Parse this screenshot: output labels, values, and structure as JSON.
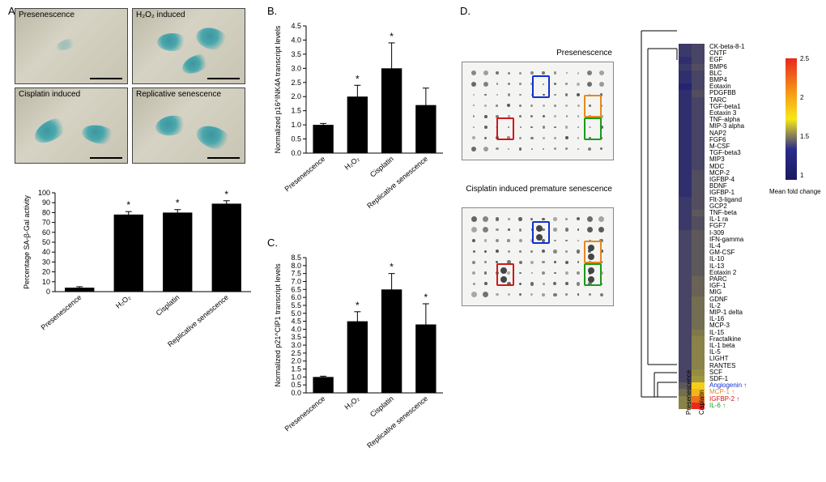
{
  "panelA": {
    "label": "A.",
    "micro_labels": [
      "Presenescence",
      "H₂O₂ induced",
      "Cisplatin induced",
      "Replicative senescence"
    ],
    "bars": {
      "ylabel": "Percentage SA-β-Gal activity",
      "ymax": 100,
      "ytick": 10,
      "categories": [
        "Presenescence",
        "H₂O₂",
        "Cisplatin",
        "Replicative senescence"
      ],
      "values": [
        4,
        78,
        80,
        89
      ],
      "errs": [
        1,
        3,
        3,
        3
      ],
      "stars": [
        false,
        true,
        true,
        true
      ]
    }
  },
  "panelB": {
    "label": "B.",
    "ylabel": "Normalized p16^INK4A transcript levels",
    "ymax": 4.5,
    "ytick": 0.5,
    "categories": [
      "Presenescence",
      "H₂O₂",
      "Cisplatin",
      "Replicative senescence"
    ],
    "values": [
      1.0,
      2.0,
      3.0,
      1.7
    ],
    "errs": [
      0.05,
      0.4,
      0.9,
      0.6
    ],
    "stars": [
      false,
      true,
      true,
      false
    ]
  },
  "panelC": {
    "label": "C.",
    "ylabel": "Normalized p21^CIP1 transcript levels",
    "ymax": 8.5,
    "ytick": 0.5,
    "categories": [
      "Presenescence",
      "H₂O₂",
      "Cisplatin",
      "Replicative senescence"
    ],
    "values": [
      1.0,
      4.5,
      6.5,
      4.3
    ],
    "errs": [
      0.05,
      0.6,
      1.0,
      1.3
    ],
    "stars": [
      false,
      true,
      true,
      true
    ]
  },
  "panelD": {
    "label": "D.",
    "blot_labels": [
      "Presenescence",
      "Cisplatin induced premature senescence"
    ],
    "boxes": [
      {
        "color": "#1030d0",
        "name": "angiogenin"
      },
      {
        "color": "#e58a1a",
        "name": "mcp1"
      },
      {
        "color": "#d01818",
        "name": "igfbp2"
      },
      {
        "color": "#1a9a1a",
        "name": "il6"
      }
    ],
    "heatmap": {
      "cols": [
        "Presenescence",
        "Cisplatin"
      ],
      "rows": [
        "CK-beta-8-1",
        "CNTF",
        "EGF",
        "BMP6",
        "BLC",
        "BMP4",
        "Eotaxin",
        "PDGFBB",
        "TARC",
        "TGF-beta1",
        "Eotaxin 3",
        "TNF-alpha",
        "MIP-3 alpha",
        "NAP2",
        "FGF6",
        "M-CSF",
        "TGF-beta3",
        "MIP3",
        "MDC",
        "MCP-2",
        "IGFBP-4",
        "BDNF",
        "IGFBP-1",
        "Flt-3-ligand",
        "GCP2",
        "TNF-beta",
        "IL-1 ra",
        "FGF7",
        "I-309",
        "IFN-gamma",
        "IL-4",
        "GM-CSF",
        "IL-10",
        "IL-13",
        "Eotaxin 2",
        "PARC",
        "IGF-1",
        "MIG",
        "GDNF",
        "IL-2",
        "MIP-1 delta",
        "IL-16",
        "MCP-3",
        "IL-15",
        "Fractalkine",
        "IL-1 beta",
        "IL-5",
        "LIGHT",
        "RANTES",
        "SCF",
        "SDF-1",
        "Angiogenin",
        "MCP-1",
        "IGFBP-2",
        "IL-6"
      ],
      "values": [
        [
          0.95,
          1.0
        ],
        [
          0.95,
          1.0
        ],
        [
          0.9,
          1.0
        ],
        [
          0.95,
          1.05
        ],
        [
          0.9,
          1.0
        ],
        [
          0.9,
          1.0
        ],
        [
          0.85,
          1.0
        ],
        [
          0.9,
          1.05
        ],
        [
          0.9,
          1.0
        ],
        [
          0.9,
          1.0
        ],
        [
          0.9,
          1.0
        ],
        [
          0.9,
          1.0
        ],
        [
          0.9,
          1.0
        ],
        [
          0.9,
          1.0
        ],
        [
          0.9,
          1.0
        ],
        [
          0.9,
          1.0
        ],
        [
          0.9,
          1.0
        ],
        [
          0.9,
          1.0
        ],
        [
          0.9,
          1.0
        ],
        [
          0.9,
          1.05
        ],
        [
          0.9,
          1.05
        ],
        [
          0.9,
          1.05
        ],
        [
          0.9,
          1.05
        ],
        [
          0.95,
          1.05
        ],
        [
          0.95,
          1.05
        ],
        [
          0.95,
          1.1
        ],
        [
          0.95,
          1.05
        ],
        [
          0.95,
          1.05
        ],
        [
          1.0,
          1.1
        ],
        [
          1.0,
          1.1
        ],
        [
          1.0,
          1.1
        ],
        [
          1.0,
          1.1
        ],
        [
          1.0,
          1.1
        ],
        [
          1.0,
          1.1
        ],
        [
          1.0,
          1.1
        ],
        [
          1.0,
          1.15
        ],
        [
          1.0,
          1.15
        ],
        [
          1.0,
          1.15
        ],
        [
          1.0,
          1.2
        ],
        [
          1.0,
          1.2
        ],
        [
          1.0,
          1.2
        ],
        [
          1.0,
          1.2
        ],
        [
          1.0,
          1.2
        ],
        [
          1.0,
          1.25
        ],
        [
          1.0,
          1.3
        ],
        [
          1.0,
          1.3
        ],
        [
          1.0,
          1.3
        ],
        [
          1.0,
          1.3
        ],
        [
          1.0,
          1.3
        ],
        [
          1.0,
          1.35
        ],
        [
          1.0,
          1.4
        ],
        [
          1.1,
          1.9
        ],
        [
          1.2,
          2.0
        ],
        [
          1.3,
          2.3
        ],
        [
          1.3,
          2.6
        ]
      ],
      "min": 0.8,
      "max": 2.6,
      "colorbar_label": "Mean fold change",
      "highlight_rows": {
        "Angiogenin": "#1030d0",
        "MCP-1": "#e58a1a",
        "IGFBP-2": "#d01818",
        "IL-6": "#1a9a1a"
      }
    }
  }
}
